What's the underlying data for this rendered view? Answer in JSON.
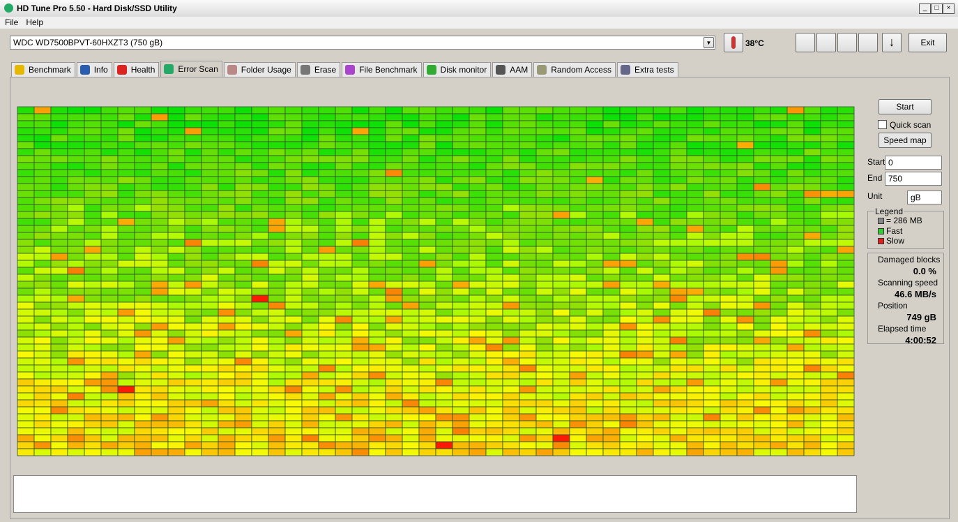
{
  "window": {
    "title": "HD Tune Pro 5.50 - Hard Disk/SSD Utility"
  },
  "menu": [
    "File",
    "Help"
  ],
  "toolbar": {
    "drive": "WDC WD7500BPVT-60HXZT3 (750 gB)",
    "temperature": "38°C",
    "exit": "Exit"
  },
  "tabs": [
    "Benchmark",
    "Info",
    "Health",
    "Error Scan",
    "Folder Usage",
    "Erase",
    "File Benchmark",
    "Disk monitor",
    "AAM",
    "Random Access",
    "Extra tests"
  ],
  "active_tab": "Error Scan",
  "controls": {
    "start_button": "Start",
    "quick_scan": "Quick scan",
    "speed_map": "Speed map",
    "start_label": "Start",
    "start_value": "0",
    "end_label": "End",
    "end_value": "750",
    "unit_label": "Unit",
    "unit_value": "gB"
  },
  "legend": {
    "title": "Legend",
    "items": [
      "= 286 MB",
      "Fast",
      "Slow"
    ]
  },
  "stats": [
    {
      "label": "Damaged blocks",
      "value": "0.0 %"
    },
    {
      "label": "Scanning speed",
      "value": "46.6 MB/s"
    },
    {
      "label": "Position",
      "value": "749 gB"
    },
    {
      "label": "Elapsed time",
      "value": "4:00:52"
    }
  ]
}
